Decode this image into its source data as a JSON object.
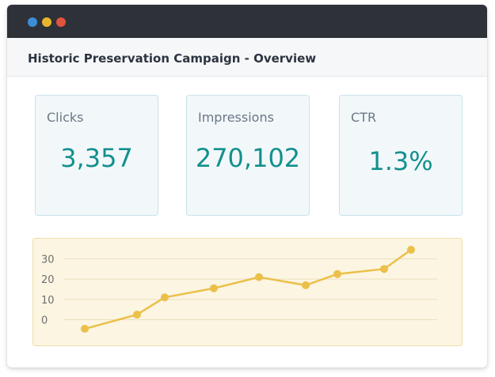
{
  "window": {
    "title": "Historic Preservation Campaign - Overview",
    "controls": [
      {
        "name": "blue",
        "color": "#3b8ed6"
      },
      {
        "name": "yellow",
        "color": "#e8b52e"
      },
      {
        "name": "red",
        "color": "#e0533f"
      }
    ]
  },
  "metrics": [
    {
      "label": "Clicks",
      "value": "3,357"
    },
    {
      "label": "Impressions",
      "value": "270,102"
    },
    {
      "label": "CTR",
      "value": "1.3%"
    }
  ],
  "chart_data": {
    "type": "line",
    "x": [
      1,
      2,
      3,
      4,
      5,
      6,
      7,
      8,
      9
    ],
    "series": [
      {
        "values": [
          -4.5,
          2.5,
          11,
          15.5,
          21,
          17,
          22.5,
          25,
          34.5
        ]
      }
    ],
    "yticks": [
      "30",
      "20",
      "10",
      "0"
    ],
    "ylim": [
      -8,
      38
    ],
    "grid": true,
    "color": "#ebc04a",
    "title": "",
    "xlabel": "",
    "ylabel": ""
  }
}
